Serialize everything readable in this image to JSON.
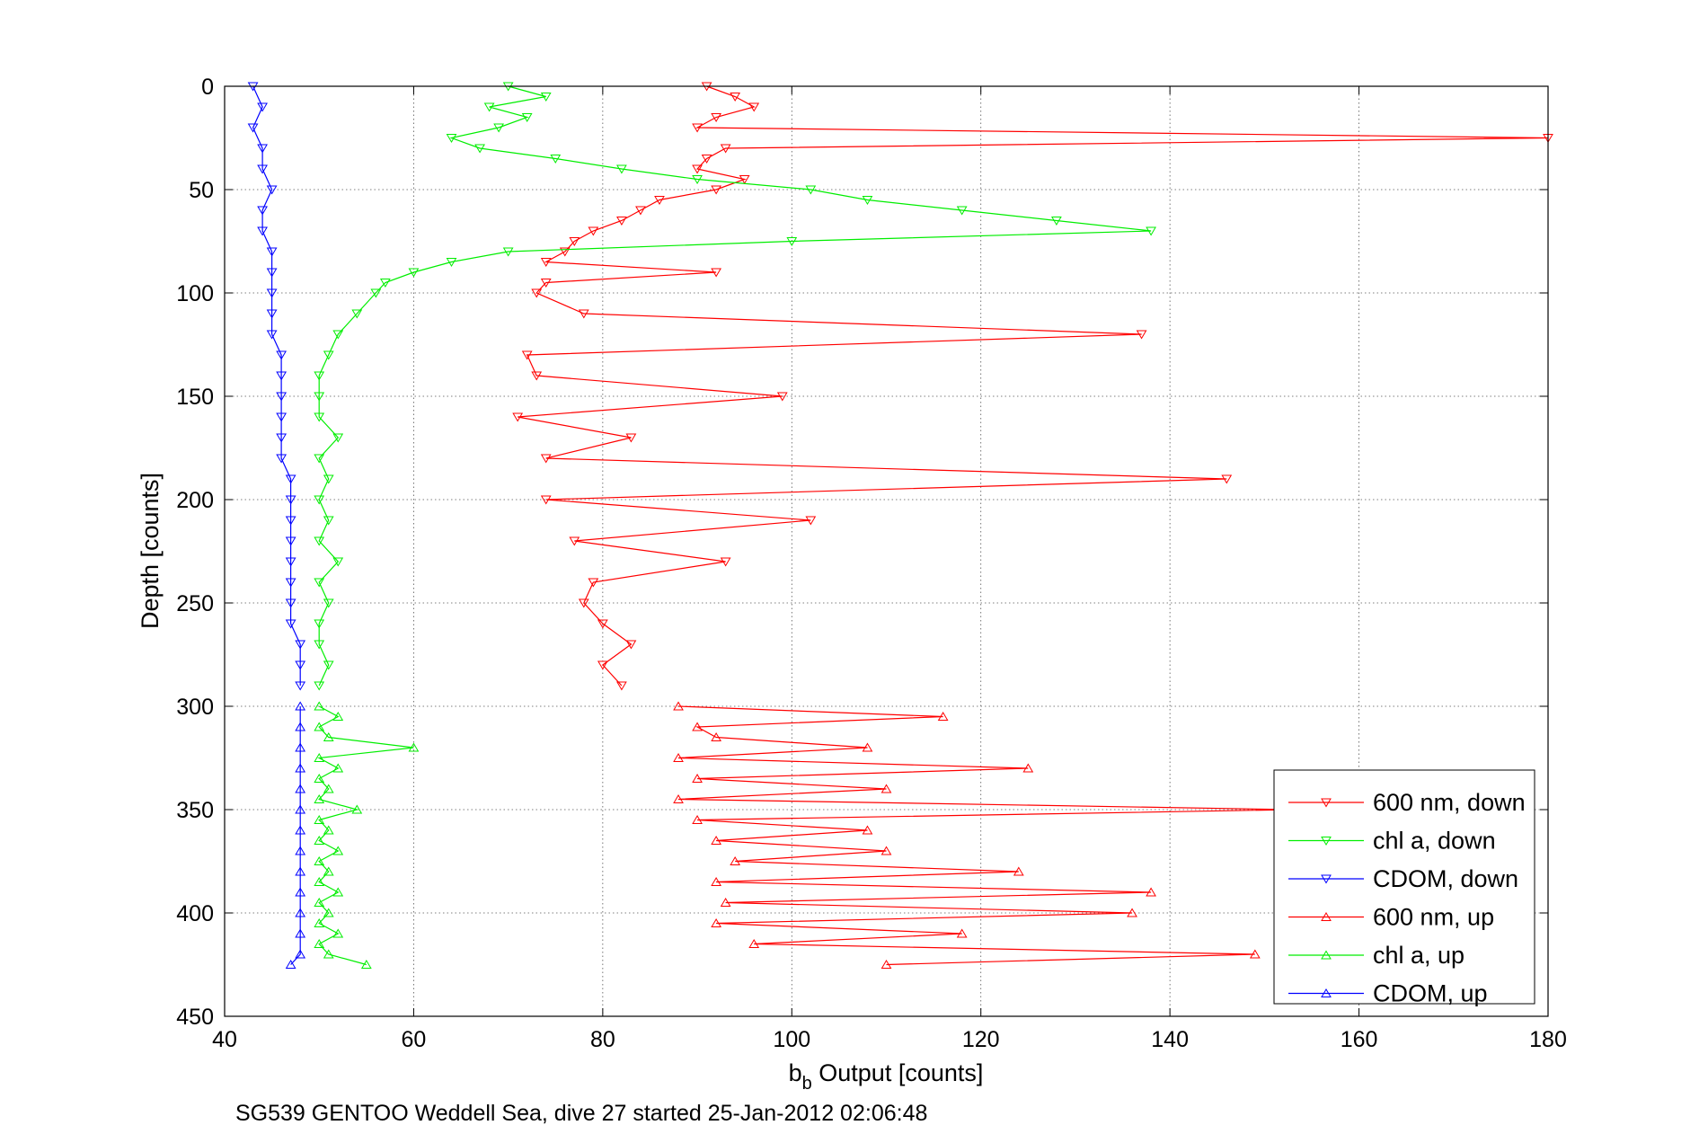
{
  "figure": {
    "caption": "SG539 GENTOO Weddell Sea, dive 27 started 25-Jan-2012 02:06:48"
  },
  "chart_data": {
    "type": "line",
    "xlabel_main": "b",
    "xlabel_sub": "b",
    "xlabel_rest": " Output [counts]",
    "ylabel": "Depth [counts]",
    "xlim": [
      40,
      180
    ],
    "ylim": [
      0,
      450
    ],
    "y_reversed": true,
    "grid": true,
    "legend_position": "lower-right",
    "xticks": [
      40,
      60,
      80,
      100,
      120,
      140,
      160,
      180
    ],
    "yticks": [
      0,
      50,
      100,
      150,
      200,
      250,
      300,
      350,
      400,
      450
    ],
    "series": [
      {
        "name": "600 nm, down",
        "color": "#ff0000",
        "marker": "triangle-down",
        "depth": [
          0,
          5,
          10,
          15,
          20,
          25,
          30,
          35,
          40,
          45,
          50,
          55,
          60,
          65,
          70,
          75,
          80,
          85,
          90,
          95,
          100,
          110,
          120,
          130,
          140,
          150,
          160,
          170,
          180,
          190,
          200,
          210,
          220,
          230,
          240,
          250,
          260,
          270,
          280,
          290
        ],
        "values": [
          91,
          94,
          96,
          92,
          90,
          180,
          93,
          91,
          90,
          95,
          92,
          86,
          84,
          82,
          79,
          77,
          76,
          74,
          92,
          74,
          73,
          78,
          137,
          72,
          73,
          99,
          71,
          83,
          74,
          146,
          74,
          102,
          77,
          93,
          79,
          78,
          80,
          83,
          80,
          82
        ]
      },
      {
        "name": "chl a, down",
        "color": "#00ee00",
        "marker": "triangle-down",
        "depth": [
          0,
          5,
          10,
          15,
          20,
          25,
          30,
          35,
          40,
          45,
          50,
          55,
          60,
          65,
          70,
          75,
          80,
          85,
          90,
          95,
          100,
          110,
          120,
          130,
          140,
          150,
          160,
          170,
          180,
          190,
          200,
          210,
          220,
          230,
          240,
          250,
          260,
          270,
          280,
          290
        ],
        "values": [
          70,
          74,
          68,
          72,
          69,
          64,
          67,
          75,
          82,
          90,
          102,
          108,
          118,
          128,
          138,
          100,
          70,
          64,
          60,
          57,
          56,
          54,
          52,
          51,
          50,
          50,
          50,
          52,
          50,
          51,
          50,
          51,
          50,
          52,
          50,
          51,
          50,
          50,
          51,
          50
        ]
      },
      {
        "name": "CDOM, down",
        "color": "#0000ff",
        "marker": "triangle-down",
        "depth": [
          0,
          10,
          20,
          30,
          40,
          50,
          60,
          70,
          80,
          90,
          100,
          110,
          120,
          130,
          140,
          150,
          160,
          170,
          180,
          190,
          200,
          210,
          220,
          230,
          240,
          250,
          260,
          270,
          280,
          290
        ],
        "values": [
          43,
          44,
          43,
          44,
          44,
          45,
          44,
          44,
          45,
          45,
          45,
          45,
          45,
          46,
          46,
          46,
          46,
          46,
          46,
          47,
          47,
          47,
          47,
          47,
          47,
          47,
          47,
          48,
          48,
          48
        ]
      },
      {
        "name": "600 nm, up",
        "color": "#ff0000",
        "marker": "triangle-up",
        "depth": [
          300,
          305,
          310,
          315,
          320,
          325,
          330,
          335,
          340,
          345,
          350,
          355,
          360,
          365,
          370,
          375,
          380,
          385,
          390,
          395,
          400,
          405,
          410,
          415,
          420,
          425
        ],
        "values": [
          88,
          116,
          90,
          92,
          108,
          88,
          125,
          90,
          110,
          88,
          153,
          90,
          108,
          92,
          110,
          94,
          124,
          92,
          138,
          93,
          136,
          92,
          118,
          96,
          149,
          110
        ]
      },
      {
        "name": "chl a, up",
        "color": "#00ee00",
        "marker": "triangle-up",
        "depth": [
          300,
          305,
          310,
          315,
          320,
          325,
          330,
          335,
          340,
          345,
          350,
          355,
          360,
          365,
          370,
          375,
          380,
          385,
          390,
          395,
          400,
          405,
          410,
          415,
          420,
          425
        ],
        "values": [
          50,
          52,
          50,
          51,
          60,
          50,
          52,
          50,
          51,
          50,
          54,
          50,
          51,
          50,
          52,
          50,
          51,
          50,
          52,
          50,
          51,
          50,
          52,
          50,
          51,
          55
        ]
      },
      {
        "name": "CDOM, up",
        "color": "#0000ff",
        "marker": "triangle-up",
        "depth": [
          300,
          310,
          320,
          330,
          340,
          350,
          360,
          370,
          380,
          390,
          400,
          410,
          420,
          425
        ],
        "values": [
          48,
          48,
          48,
          48,
          48,
          48,
          48,
          48,
          48,
          48,
          48,
          48,
          48,
          47
        ]
      }
    ]
  }
}
